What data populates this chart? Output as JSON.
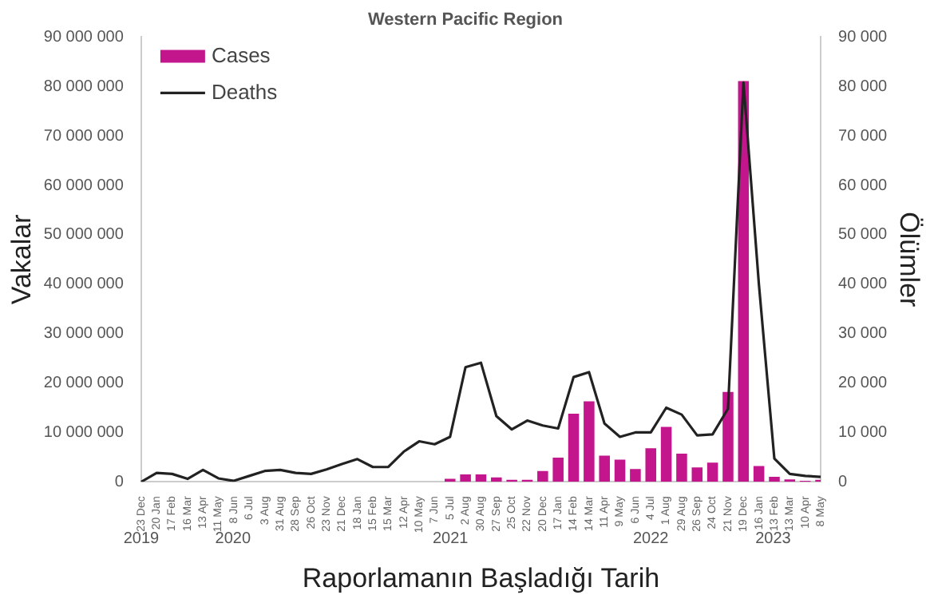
{
  "chart_data": {
    "type": "bar",
    "title": "Western Pacific Region",
    "xlabel": "Raporlamanın Başladığı Tarih",
    "ylabel": "Vakalar",
    "y2label": "Ölümler",
    "categories": [
      "23 Dec",
      "20 Jan",
      "17 Feb",
      "16 Mar",
      "13 Apr",
      "11 May",
      "8 Jun",
      "6 Jul",
      "3 Aug",
      "31 Aug",
      "28 Sep",
      "26 Oct",
      "23 Nov",
      "21 Dec",
      "18 Jan",
      "15 Feb",
      "15 Mar",
      "12 Apr",
      "10 May",
      "7 Jun",
      "5 Jul",
      "2 Aug",
      "30 Aug",
      "27 Sep",
      "25 Oct",
      "22 Nov",
      "20 Dec",
      "17 Jan",
      "14 Feb",
      "14 Mar",
      "11 Apr",
      "9 May",
      "6 Jun",
      "4 Jul",
      "1 Aug",
      "29 Aug",
      "26 Sep",
      "24 Oct",
      "21 Nov",
      "19 Dec",
      "16 Jan",
      "13 Feb",
      "13 Mar",
      "10 Apr",
      "8 May"
    ],
    "series": [
      {
        "name": "Cases",
        "color": "#c4168c",
        "values": [
          0,
          0,
          0,
          0,
          0,
          0,
          0,
          0,
          0,
          0,
          0,
          0,
          0,
          0,
          0,
          0,
          0,
          0,
          0,
          0,
          600000,
          1500000,
          1500000,
          900000,
          400000,
          400000,
          2200000,
          4900000,
          13800000,
          16300000,
          5300000,
          4500000,
          2600000,
          6800000,
          11100000,
          5700000,
          2900000,
          3900000,
          18200000,
          81100000,
          3200000,
          1000000,
          500000,
          200000,
          400000
        ]
      },
      {
        "name": "Deaths",
        "type": "line",
        "axis": "y2",
        "color": "#222222",
        "values": [
          0,
          1800,
          1600,
          600,
          2400,
          700,
          200,
          1200,
          2200,
          2400,
          1800,
          1600,
          2500,
          3600,
          4600,
          3000,
          3000,
          6100,
          8200,
          7600,
          9100,
          23200,
          24100,
          13300,
          10600,
          12400,
          11400,
          10800,
          21200,
          22200,
          11800,
          9100,
          10000,
          10000,
          15000,
          13600,
          9400,
          9600,
          14800,
          80800,
          40000,
          4700,
          1600,
          1200,
          1000
        ]
      }
    ],
    "ylim": [
      0,
      90000000
    ],
    "yticks": [
      0,
      {
        "value": 10000000,
        "label": "10 000 000"
      },
      {
        "value": 20000000,
        "label": "20 000 000"
      },
      {
        "value": 30000000,
        "label": "30 000 000"
      },
      {
        "value": 40000000,
        "label": "40 000 000"
      },
      {
        "value": 50000000,
        "label": "50 000 000"
      },
      {
        "value": 60000000,
        "label": "60 000 000"
      },
      {
        "value": 70000000,
        "label": "70 000 000"
      },
      {
        "value": 80000000,
        "label": "80 000 000"
      },
      {
        "value": 90000000,
        "label": "90 000 000"
      }
    ],
    "y2lim": [
      0,
      90000
    ],
    "y2ticks": [
      0,
      {
        "value": 10000,
        "label": "10 000"
      },
      {
        "value": 20000,
        "label": "20 000"
      },
      {
        "value": 30000,
        "label": "30 000"
      },
      {
        "value": 40000,
        "label": "40 000"
      },
      {
        "value": 50000,
        "label": "50 000"
      },
      {
        "value": 60000,
        "label": "60 000"
      },
      {
        "value": 70000,
        "label": "70 000"
      },
      {
        "value": 80000,
        "label": "80 000"
      },
      {
        "value": 90000,
        "label": "90 000"
      }
    ],
    "annotations": [
      "2019",
      "2020",
      "2021",
      "2022",
      "2023"
    ],
    "legend": "top left",
    "grid": false,
    "marker": "none",
    "line_style": "solid"
  }
}
